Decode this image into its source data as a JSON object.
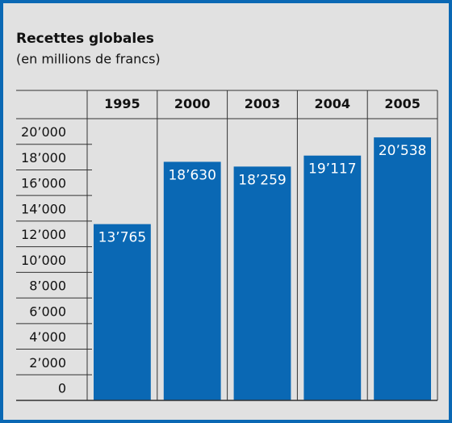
{
  "chart_data": {
    "type": "bar",
    "title": "Recettes globales",
    "subtitle": "(en millions de francs)",
    "categories": [
      "1995",
      "2000",
      "2003",
      "2004",
      "2005"
    ],
    "values": [
      13765,
      18630,
      18259,
      19117,
      20538
    ],
    "value_labels": [
      "13’765",
      "18’630",
      "18’259",
      "19’117",
      "20’538"
    ],
    "color": "#0a68b4",
    "ylim": [
      0,
      22000
    ],
    "yticks": [
      0,
      {
        "value": 2000,
        "label": "2’000"
      },
      {
        "value": 4000,
        "label": "4’000"
      },
      {
        "value": 6000,
        "label": "6’000"
      },
      {
        "value": 8000,
        "label": "8’000"
      },
      {
        "value": 10000,
        "label": "10’000"
      },
      {
        "value": 12000,
        "label": "12’000"
      },
      {
        "value": 14000,
        "label": "14’000"
      },
      {
        "value": 16000,
        "label": "16’000"
      },
      {
        "value": 18000,
        "label": "18’000"
      },
      {
        "value": 20000,
        "label": "20’000"
      }
    ]
  }
}
